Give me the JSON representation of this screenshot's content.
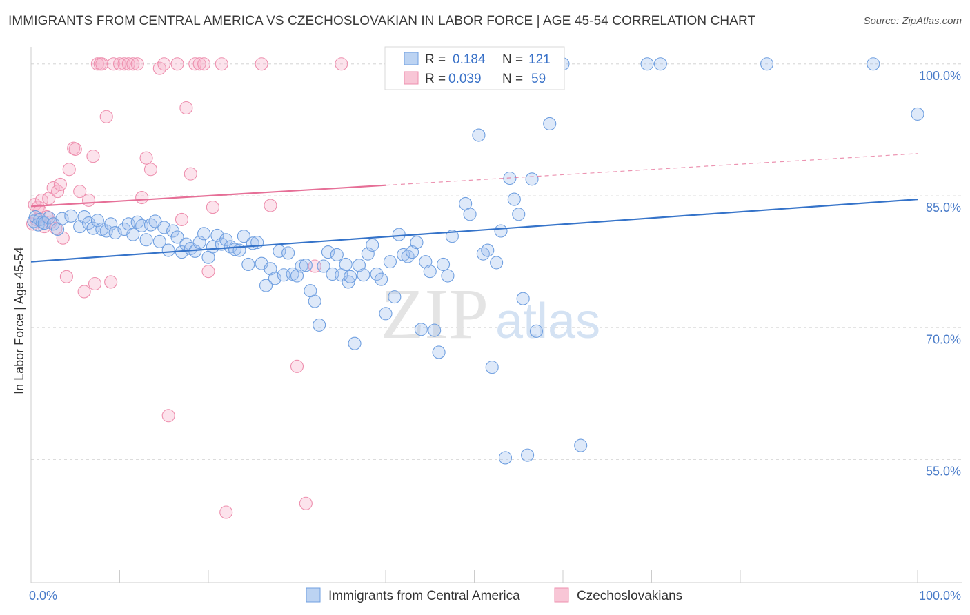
{
  "title": "IMMIGRANTS FROM CENTRAL AMERICA VS CZECHOSLOVAKIAN IN LABOR FORCE | AGE 45-54 CORRELATION CHART",
  "source": "Source: ZipAtlas.com",
  "watermark": {
    "zip": "ZIP",
    "atlas": "atlas"
  },
  "colors": {
    "blue": "#6f9fe0",
    "blue_line": "#3573c9",
    "pink": "#ee8fae",
    "pink_line": "#e66f97",
    "tick": "#4a7cc9"
  },
  "legend": {
    "rows": [
      {
        "r_label": "R = ",
        "r_value": "0.184",
        "n_label": "N = ",
        "n_value": "121"
      },
      {
        "r_label": "R = ",
        "r_value": "0.039",
        "n_label": "N = ",
        "n_value": "59"
      }
    ]
  },
  "chart_data": {
    "type": "scatter",
    "title": "IMMIGRANTS FROM CENTRAL AMERICA VS CZECHOSLOVAKIAN IN LABOR FORCE | AGE 45-54 CORRELATION CHART",
    "xlabel": "",
    "ylabel": "In Labor Force | Age 45-54",
    "xlim": [
      0,
      100
    ],
    "ylim": [
      41,
      101
    ],
    "x_tick_labels": [
      "0.0%",
      "100.0%"
    ],
    "y_ticks": [
      55,
      70,
      85,
      100
    ],
    "y_tick_labels": [
      "55.0%",
      "70.0%",
      "85.0%",
      "100.0%"
    ],
    "grid": true,
    "legend_position": "top-center",
    "series": [
      {
        "name": "Immigrants from Central America",
        "color": "#6f9fe0",
        "trend": {
          "x": [
            0,
            100
          ],
          "y": [
            77.5,
            84.6
          ],
          "dashed_from": null
        },
        "points": [
          [
            0.3,
            82.1
          ],
          [
            0.5,
            82.6
          ],
          [
            0.8,
            81.7
          ],
          [
            1.0,
            82.3
          ],
          [
            1.3,
            82.0
          ],
          [
            1.5,
            81.9
          ],
          [
            2.0,
            82.5
          ],
          [
            2.5,
            81.8
          ],
          [
            3.0,
            81.2
          ],
          [
            3.5,
            82.4
          ],
          [
            4.5,
            82.7
          ],
          [
            5.5,
            81.5
          ],
          [
            6.0,
            82.6
          ],
          [
            6.5,
            81.9
          ],
          [
            7.0,
            81.3
          ],
          [
            7.5,
            82.2
          ],
          [
            8.0,
            81.2
          ],
          [
            8.5,
            81.0
          ],
          [
            9.0,
            81.8
          ],
          [
            9.5,
            80.8
          ],
          [
            10.5,
            81.2
          ],
          [
            11.0,
            81.8
          ],
          [
            11.5,
            80.6
          ],
          [
            12.0,
            82.0
          ],
          [
            12.5,
            81.6
          ],
          [
            13.0,
            80.0
          ],
          [
            13.5,
            81.7
          ],
          [
            14.0,
            82.1
          ],
          [
            14.5,
            79.8
          ],
          [
            15.0,
            81.4
          ],
          [
            15.5,
            78.8
          ],
          [
            16.0,
            81.0
          ],
          [
            16.5,
            80.3
          ],
          [
            17.0,
            78.6
          ],
          [
            17.5,
            79.5
          ],
          [
            18.0,
            79.0
          ],
          [
            18.5,
            78.7
          ],
          [
            19.0,
            79.7
          ],
          [
            19.5,
            80.7
          ],
          [
            20.0,
            78.0
          ],
          [
            20.5,
            79.2
          ],
          [
            21.0,
            80.5
          ],
          [
            21.5,
            79.5
          ],
          [
            22.0,
            80.0
          ],
          [
            22.5,
            79.2
          ],
          [
            23.0,
            78.9
          ],
          [
            23.5,
            78.8
          ],
          [
            24.0,
            80.4
          ],
          [
            24.5,
            77.2
          ],
          [
            25.0,
            79.6
          ],
          [
            25.5,
            79.7
          ],
          [
            26.0,
            77.3
          ],
          [
            26.5,
            74.8
          ],
          [
            27.0,
            76.7
          ],
          [
            27.5,
            75.6
          ],
          [
            28.0,
            78.7
          ],
          [
            28.5,
            76.0
          ],
          [
            29.0,
            78.5
          ],
          [
            29.5,
            76.1
          ],
          [
            30.0,
            75.9
          ],
          [
            30.5,
            77.0
          ],
          [
            31.0,
            77.1
          ],
          [
            31.5,
            74.2
          ],
          [
            32.0,
            73.0
          ],
          [
            32.5,
            70.3
          ],
          [
            33.0,
            77.0
          ],
          [
            33.5,
            78.6
          ],
          [
            34.0,
            76.1
          ],
          [
            34.5,
            78.3
          ],
          [
            35.0,
            76.0
          ],
          [
            35.5,
            77.2
          ],
          [
            35.8,
            75.2
          ],
          [
            36.0,
            75.8
          ],
          [
            36.5,
            68.2
          ],
          [
            37.0,
            77.1
          ],
          [
            37.5,
            76.0
          ],
          [
            38.0,
            78.4
          ],
          [
            38.5,
            79.4
          ],
          [
            39.0,
            76.1
          ],
          [
            39.5,
            75.5
          ],
          [
            40.0,
            71.6
          ],
          [
            40.5,
            77.5
          ],
          [
            41.0,
            73.5
          ],
          [
            41.5,
            80.6
          ],
          [
            42.0,
            78.3
          ],
          [
            42.5,
            78.1
          ],
          [
            43.0,
            78.6
          ],
          [
            43.5,
            79.7
          ],
          [
            44.0,
            69.8
          ],
          [
            44.5,
            77.5
          ],
          [
            45.0,
            76.4
          ],
          [
            45.5,
            69.7
          ],
          [
            46.0,
            67.2
          ],
          [
            46.5,
            77.2
          ],
          [
            47.0,
            75.9
          ],
          [
            47.5,
            80.4
          ],
          [
            48.0,
            100.0
          ],
          [
            48.5,
            100.0
          ],
          [
            49.0,
            84.1
          ],
          [
            49.5,
            82.9
          ],
          [
            50.0,
            100.0
          ],
          [
            50.5,
            91.9
          ],
          [
            51.0,
            78.4
          ],
          [
            51.5,
            78.8
          ],
          [
            52.0,
            65.5
          ],
          [
            52.5,
            77.4
          ],
          [
            53.0,
            81.0
          ],
          [
            53.5,
            55.2
          ],
          [
            54.0,
            87.0
          ],
          [
            54.5,
            84.6
          ],
          [
            55.0,
            82.9
          ],
          [
            55.5,
            73.3
          ],
          [
            56.0,
            55.5
          ],
          [
            56.5,
            86.9
          ],
          [
            57.0,
            69.6
          ],
          [
            57.5,
            100.0
          ],
          [
            58.5,
            93.2
          ],
          [
            60.0,
            100.0
          ],
          [
            62.0,
            56.6
          ],
          [
            69.5,
            100.0
          ],
          [
            71.0,
            100.0
          ],
          [
            83.0,
            100.0
          ],
          [
            95.0,
            100.0
          ],
          [
            100.0,
            94.3
          ]
        ]
      },
      {
        "name": "Czechoslovakians",
        "color": "#ee8fae",
        "trend": {
          "x": [
            0,
            100
          ],
          "y": [
            83.8,
            89.8
          ],
          "dashed_from": 40
        },
        "points": [
          [
            0.2,
            81.8
          ],
          [
            0.4,
            84.0
          ],
          [
            0.6,
            82.3
          ],
          [
            0.8,
            83.7
          ],
          [
            1.0,
            83.3
          ],
          [
            1.2,
            84.5
          ],
          [
            1.5,
            81.5
          ],
          [
            1.8,
            82.6
          ],
          [
            2.0,
            84.7
          ],
          [
            2.2,
            82.0
          ],
          [
            2.5,
            85.9
          ],
          [
            2.8,
            81.3
          ],
          [
            3.0,
            85.5
          ],
          [
            3.3,
            86.3
          ],
          [
            3.6,
            80.2
          ],
          [
            4.0,
            75.8
          ],
          [
            4.3,
            88.0
          ],
          [
            4.8,
            90.4
          ],
          [
            5.0,
            90.3
          ],
          [
            5.5,
            85.5
          ],
          [
            6.0,
            74.1
          ],
          [
            6.5,
            84.5
          ],
          [
            7.0,
            89.5
          ],
          [
            7.2,
            75.0
          ],
          [
            7.5,
            100.0
          ],
          [
            7.8,
            100.0
          ],
          [
            8.0,
            100.0
          ],
          [
            8.5,
            94.0
          ],
          [
            9.0,
            75.2
          ],
          [
            9.3,
            100.0
          ],
          [
            10.0,
            100.0
          ],
          [
            10.5,
            100.0
          ],
          [
            11.0,
            100.0
          ],
          [
            11.5,
            100.0
          ],
          [
            12.0,
            100.0
          ],
          [
            12.5,
            84.8
          ],
          [
            13.0,
            89.3
          ],
          [
            13.5,
            88.0
          ],
          [
            14.5,
            99.5
          ],
          [
            15.0,
            100.0
          ],
          [
            15.5,
            60.0
          ],
          [
            16.5,
            100.0
          ],
          [
            17.0,
            82.3
          ],
          [
            17.5,
            95.0
          ],
          [
            18.0,
            87.5
          ],
          [
            18.5,
            100.0
          ],
          [
            19.0,
            100.0
          ],
          [
            19.5,
            100.0
          ],
          [
            20.0,
            76.4
          ],
          [
            20.5,
            83.7
          ],
          [
            21.5,
            100.0
          ],
          [
            22.0,
            49.0
          ],
          [
            26.0,
            100.0
          ],
          [
            27.0,
            83.9
          ],
          [
            30.0,
            65.6
          ],
          [
            31.0,
            50.0
          ],
          [
            32.0,
            77.0
          ],
          [
            35.0,
            100.0
          ],
          [
            41.0,
            100.0
          ]
        ]
      }
    ]
  }
}
